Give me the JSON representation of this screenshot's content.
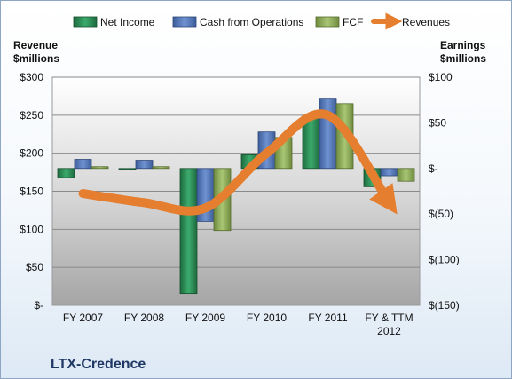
{
  "chart_data": {
    "type": "bar",
    "title": "LTX-Credence",
    "categories": [
      "FY 2007",
      "FY 2008",
      "FY 2009",
      "FY 2010",
      "FY 2011",
      "FY & TTM 2012"
    ],
    "series": [
      {
        "name": "Net Income",
        "axis": "right",
        "type": "bar",
        "color": "#2e8b57",
        "values": [
          -10,
          0,
          -137,
          15,
          58,
          -20
        ]
      },
      {
        "name": "Cash from Operations",
        "axis": "right",
        "type": "bar",
        "color": "#4f74b8",
        "values": [
          10,
          9,
          -58,
          40,
          77,
          -8
        ]
      },
      {
        "name": "FCF",
        "axis": "right",
        "type": "bar",
        "color": "#8fb05a",
        "values": [
          2,
          2,
          -68,
          34,
          71,
          -14
        ]
      },
      {
        "name": "Revenues",
        "axis": "left",
        "type": "line",
        "color": "#e57e2f",
        "values": [
          147,
          135,
          128,
          200,
          250,
          135
        ]
      }
    ],
    "left_axis": {
      "label_line1": "Revenue",
      "label_line2": "$millions",
      "ylim": [
        0,
        300
      ],
      "ticks": [
        "$-",
        "$50",
        "$100",
        "$150",
        "$200",
        "$250",
        "$300"
      ]
    },
    "right_axis": {
      "label_line1": "Earnings",
      "label_line2": "$millions",
      "ylim": [
        -150,
        100
      ],
      "ticks": [
        "$(150)",
        "$(100)",
        "$(50)",
        "$-",
        "$50",
        "$100"
      ]
    },
    "x_label_lines": [
      [
        "FY 2007"
      ],
      [
        "FY 2008"
      ],
      [
        "FY 2009"
      ],
      [
        "FY 2010"
      ],
      [
        "FY 2011"
      ],
      [
        "FY & TTM",
        "2012"
      ]
    ],
    "legend_position": "top",
    "grid": true
  }
}
